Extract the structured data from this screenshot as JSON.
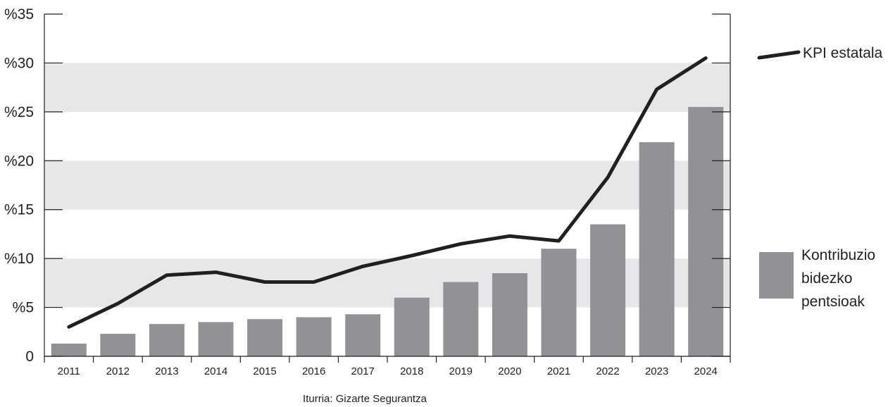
{
  "chart_data": {
    "type": "bar",
    "categories": [
      "2011",
      "2012",
      "2013",
      "2014",
      "2015",
      "2016",
      "2017",
      "2018",
      "2019",
      "2020",
      "2021",
      "2022",
      "2023",
      "2024"
    ],
    "series": [
      {
        "name": "Kontribuzio bidezko pentsioak",
        "type": "bar",
        "color": "#929296",
        "values": [
          1.3,
          2.3,
          3.3,
          3.5,
          3.8,
          4.0,
          4.3,
          6.0,
          7.6,
          8.5,
          11.0,
          13.5,
          21.9,
          25.5
        ]
      },
      {
        "name": "KPI estatala",
        "type": "line",
        "color": "#231f20",
        "values": [
          3.0,
          5.4,
          8.3,
          8.6,
          7.6,
          7.6,
          9.2,
          10.3,
          11.5,
          12.3,
          11.8,
          18.3,
          27.3,
          30.5
        ]
      }
    ],
    "ylim": [
      0,
      35
    ],
    "yticks": [
      0,
      5,
      10,
      15,
      20,
      25,
      30,
      35
    ],
    "ytick_labels": [
      "0",
      "%5",
      "%10",
      "%15",
      "%20",
      "%25",
      "%30",
      "%35"
    ],
    "grid": "alternating horizontal bands",
    "band_color": "#e6e7e8",
    "legend": {
      "placement": "right",
      "line_label": "KPI estatala",
      "bar_label_lines": [
        "Kontribuzio",
        "bidezko",
        "pentsioak"
      ]
    },
    "source": "Iturria: Gizarte Segurantza"
  }
}
